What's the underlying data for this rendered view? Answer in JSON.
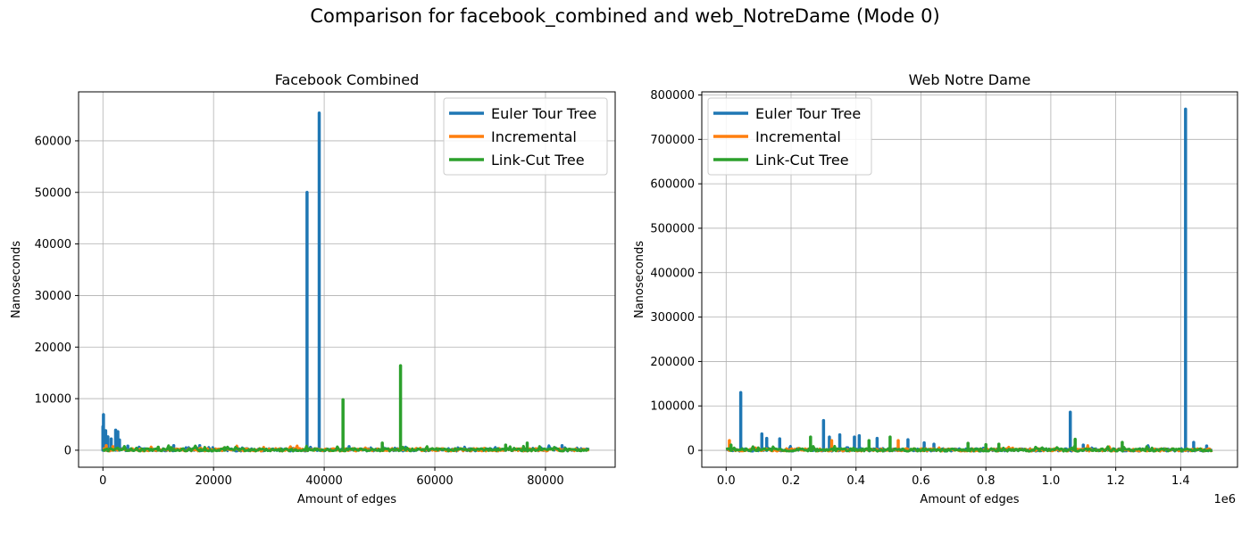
{
  "figure": {
    "title": "Comparison for facebook_combined and web_NotreDame (Mode 0)"
  },
  "colors": {
    "euler": "#1f77b4",
    "incremental": "#ff7f0e",
    "linkcut": "#2ca02c",
    "grid": "#b0b0b0"
  },
  "chart_data": [
    {
      "type": "line",
      "title": "Facebook Combined",
      "xlabel": "Amount of edges",
      "ylabel": "Nanoseconds",
      "xlim": [
        -4400,
        92600
      ],
      "ylim": [
        -3300,
        69500
      ],
      "xticks": [
        0,
        20000,
        40000,
        60000,
        80000
      ],
      "xtick_labels": [
        "0",
        "20000",
        "40000",
        "60000",
        "80000"
      ],
      "yticks": [
        0,
        10000,
        20000,
        30000,
        40000,
        50000,
        60000
      ],
      "ytick_labels": [
        "0",
        "10000",
        "20000",
        "30000",
        "40000",
        "50000",
        "60000"
      ],
      "x_offset_label": "",
      "grid": true,
      "legend": "top-right",
      "baseline": {
        "x_min": 0,
        "x_max": 88000
      },
      "series": [
        {
          "name": "Euler Tour Tree",
          "color_key": "euler",
          "spikes": [
            [
              0,
              4600
            ],
            [
              100,
              6900
            ],
            [
              500,
              3800
            ],
            [
              900,
              2600
            ],
            [
              1500,
              2200
            ],
            [
              2300,
              3900
            ],
            [
              2700,
              3600
            ],
            [
              3000,
              2000
            ],
            [
              4500,
              800
            ],
            [
              12800,
              900
            ],
            [
              17500,
              900
            ],
            [
              36900,
              50000
            ],
            [
              39100,
              65400
            ],
            [
              44500,
              700
            ],
            [
              83000,
              900
            ]
          ]
        },
        {
          "name": "Incremental",
          "color_key": "incremental",
          "spikes": [
            [
              600,
              900
            ],
            [
              1800,
              700
            ]
          ]
        },
        {
          "name": "Link-Cut Tree",
          "color_key": "linkcut",
          "spikes": [
            [
              43400,
              9800
            ],
            [
              50500,
              1400
            ],
            [
              53800,
              16400
            ],
            [
              72800,
              1000
            ],
            [
              76700,
              1400
            ],
            [
              10000,
              600
            ],
            [
              22000,
              500
            ]
          ]
        }
      ]
    },
    {
      "type": "line",
      "title": "Web Notre Dame",
      "xlabel": "Amount of edges",
      "ylabel": "Nanoseconds",
      "xlim": [
        -75000,
        1575000
      ],
      "ylim": [
        -38000,
        807000
      ],
      "xticks": [
        0,
        200000,
        400000,
        600000,
        800000,
        1000000,
        1200000,
        1400000
      ],
      "xtick_labels": [
        "0.0",
        "0.2",
        "0.4",
        "0.6",
        "0.8",
        "1.0",
        "1.2",
        "1.4"
      ],
      "yticks": [
        0,
        100000,
        200000,
        300000,
        400000,
        500000,
        600000,
        700000,
        800000
      ],
      "ytick_labels": [
        "0",
        "100000",
        "200000",
        "300000",
        "400000",
        "500000",
        "600000",
        "700000",
        "800000"
      ],
      "x_offset_label": "1e6",
      "grid": true,
      "legend": "top-left",
      "baseline": {
        "x_min": 0,
        "x_max": 1500000
      },
      "series": [
        {
          "name": "Euler Tour Tree",
          "color_key": "euler",
          "spikes": [
            [
              45000,
              130000
            ],
            [
              110000,
              37000
            ],
            [
              125000,
              27000
            ],
            [
              165000,
              26000
            ],
            [
              300000,
              67000
            ],
            [
              318000,
              30000
            ],
            [
              350000,
              35000
            ],
            [
              395000,
              30000
            ],
            [
              410000,
              33000
            ],
            [
              465000,
              27000
            ],
            [
              560000,
              24000
            ],
            [
              610000,
              17000
            ],
            [
              640000,
              14000
            ],
            [
              1060000,
              86000
            ],
            [
              1100000,
              12000
            ],
            [
              1415000,
              768000
            ],
            [
              1440000,
              18000
            ],
            [
              1480000,
              10000
            ]
          ]
        },
        {
          "name": "Incremental",
          "color_key": "incremental",
          "spikes": [
            [
              10000,
              22000
            ],
            [
              325000,
              22000
            ],
            [
              530000,
              22000
            ]
          ]
        },
        {
          "name": "Link-Cut Tree",
          "color_key": "linkcut",
          "spikes": [
            [
              15000,
              12000
            ],
            [
              260000,
              30000
            ],
            [
              440000,
              22000
            ],
            [
              505000,
              30000
            ],
            [
              745000,
              16000
            ],
            [
              800000,
              13000
            ],
            [
              840000,
              14000
            ],
            [
              1075000,
              25000
            ],
            [
              1220000,
              18000
            ]
          ]
        }
      ]
    }
  ]
}
